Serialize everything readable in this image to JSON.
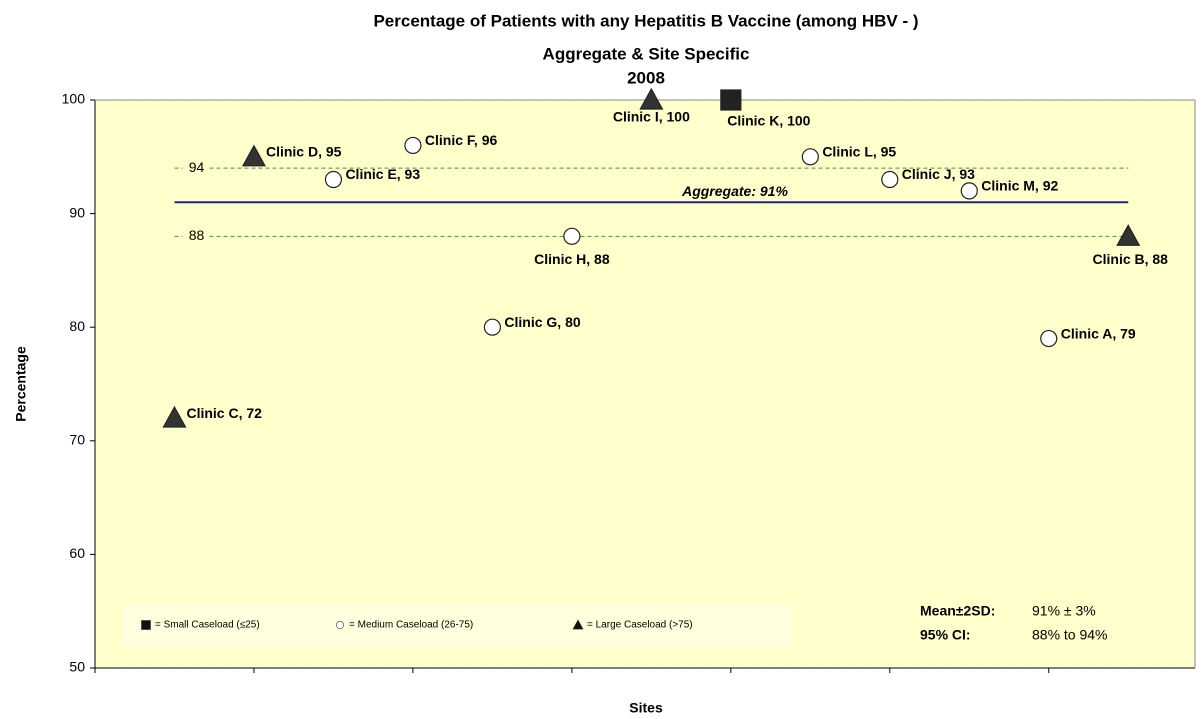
{
  "chart_data": {
    "type": "scatter",
    "title": [
      "Percentage of Patients with any Hepatitis B Vaccine (among HBV - )",
      "Aggregate & Site Specific",
      "2008"
    ],
    "x_label": "Sites",
    "y_label": "Percentage",
    "xlim": [
      0,
      6.92
    ],
    "xticks": [
      0,
      1,
      2,
      3,
      4,
      5,
      6
    ],
    "ylim": [
      50,
      100
    ],
    "yticks": [
      50,
      60,
      70,
      80,
      90,
      100
    ],
    "reference_lines": [
      {
        "value": 94,
        "label": "94",
        "color": "#3a9a3a"
      },
      {
        "value": 88,
        "label": "88",
        "color": "#3a9a3a"
      }
    ],
    "aggregate": {
      "value": 91,
      "label": "Aggregate: 91%",
      "color": "#1f2a80"
    },
    "series": [
      {
        "name": "= Small Caseload (≤25)",
        "marker": "square",
        "color": "#222222",
        "x": [
          4
        ],
        "values": [
          100
        ],
        "value_labels": [
          "Clinic K, 100"
        ]
      },
      {
        "name": "= Medium Caseload (26-75)",
        "marker": "circle",
        "color": "#ffffff",
        "x": [
          1.5,
          2,
          2.5,
          3,
          4.5,
          5,
          5.5,
          6
        ],
        "values": [
          93,
          96,
          80,
          88,
          95,
          93,
          92,
          79
        ],
        "value_labels": [
          "Clinic E, 93",
          "Clinic F, 96",
          "Clinic G, 80",
          "Clinic H, 88",
          "Clinic L, 95",
          "Clinic J, 93",
          "Clinic M, 92",
          "Clinic A, 79"
        ]
      },
      {
        "name": "= Large Caseload (>75)",
        "marker": "triangle",
        "color": "#333333",
        "x": [
          0.5,
          1,
          3.5,
          6.5
        ],
        "values": [
          72,
          95,
          100,
          88
        ],
        "value_labels": [
          "Clinic C, 72",
          "Clinic D, 95",
          "Clinic I, 100",
          "Clinic B, 88"
        ]
      }
    ],
    "stats": [
      [
        "Mean±2SD:",
        "91% ± 3%"
      ],
      [
        "95% CI:",
        "88% to 94%"
      ]
    ]
  }
}
